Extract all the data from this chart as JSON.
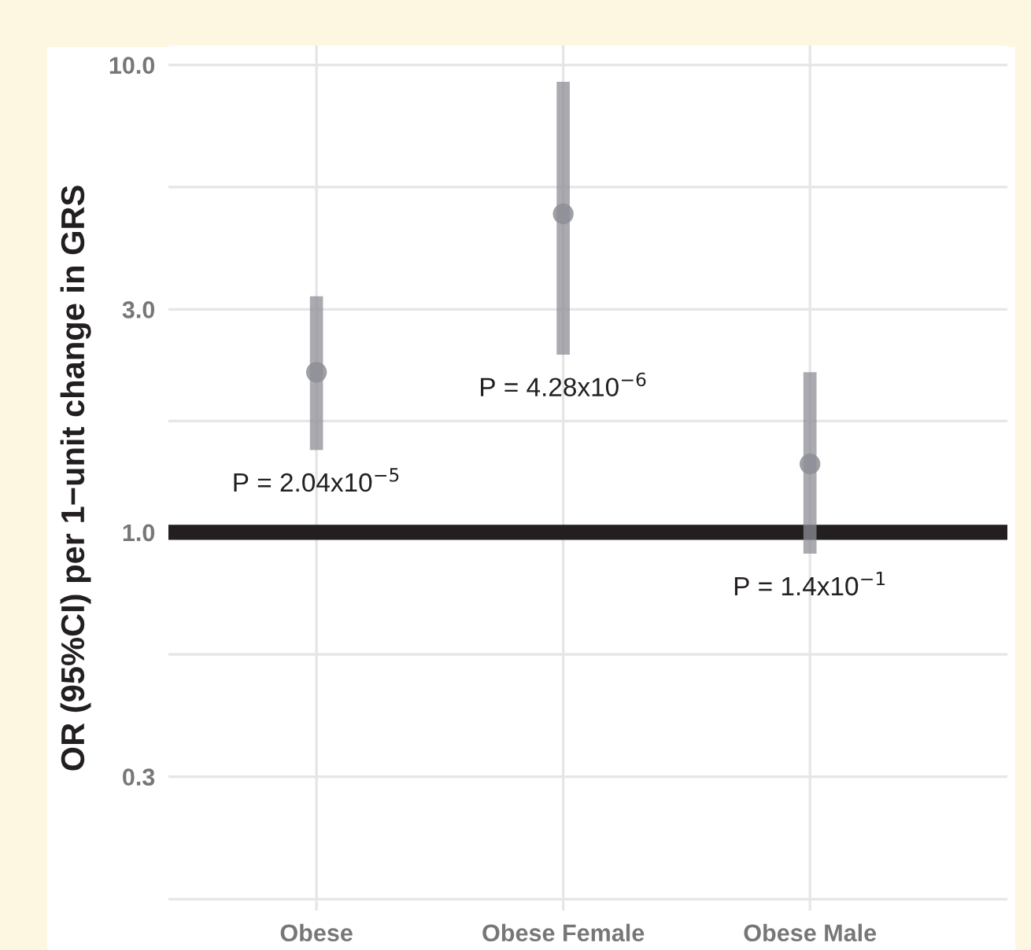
{
  "chart_data": {
    "type": "scatter",
    "ylabel": "OR (95%CI) per 1−unit change in GRS",
    "categories": [
      "Obese",
      "Obese Female",
      "Obese Male"
    ],
    "series": [
      {
        "color": "#8e8e96",
        "values": [
          2.2,
          4.8,
          1.4
        ],
        "errors": [
          [
            1.5,
            3.2
          ],
          [
            2.4,
            9.2
          ],
          [
            0.9,
            2.2
          ]
        ]
      }
    ],
    "log": true,
    "ylim": [
      0.155,
      11
    ],
    "yticks": [
      {
        "value": 0.3,
        "label": "0.3"
      },
      {
        "value": 1,
        "label": "1.0"
      },
      {
        "value": 3,
        "label": "3.0"
      },
      {
        "value": 10,
        "label": "10.0"
      },
      {
        "value": 0.164,
        "label": null
      },
      {
        "value": 0.548,
        "label": null
      },
      {
        "value": 1.73,
        "label": null
      },
      {
        "value": 5.48,
        "label": null
      }
    ],
    "grid": true,
    "marker": "circle",
    "ref_lines": [
      {
        "axis": "y",
        "value": 1,
        "color": "#231f20"
      }
    ],
    "annotations": [
      "P = 2.04x10$^{−5}$",
      "P = 4.28x10$^{−6}$",
      "P = 1.4x10$^{−1}$"
    ]
  }
}
